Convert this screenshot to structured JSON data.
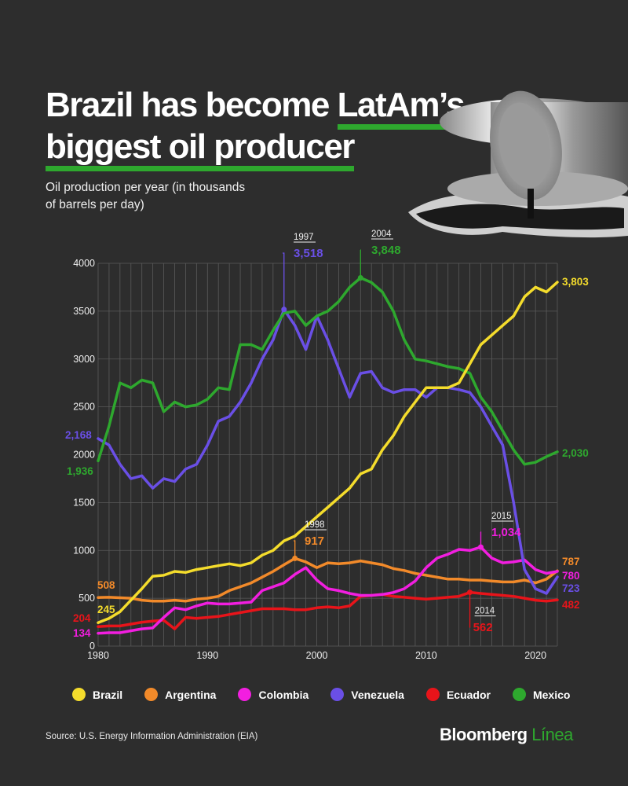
{
  "title_line1_pre": "Brazil has become ",
  "title_line1_hl": "LatAm’s",
  "title_line2": "biggest oil producer",
  "subtitle": "Oil production per year (in thousands of barrels per day)",
  "source": "Source: U.S. Energy Information Administration (EIA)",
  "brand_main": "Bloomberg",
  "brand_accent": "Línea",
  "colors": {
    "Brazil": "#f4dc2c",
    "Argentina": "#f28a2a",
    "Colombia": "#f21ee0",
    "Venezuela": "#6a4fe6",
    "Ecuador": "#e8141a",
    "Mexico": "#2ea82e",
    "background": "#2d2d2d"
  },
  "chart_data": {
    "type": "line",
    "title": "Brazil has become LatAm’s biggest oil producer",
    "subtitle": "Oil production per year (in thousands of barrels per day)",
    "xlim": [
      1980,
      2022
    ],
    "ylim": [
      0,
      4000
    ],
    "x_ticks": [
      1980,
      1990,
      2000,
      2010,
      2020
    ],
    "y_ticks": [
      0,
      500,
      1000,
      1500,
      2000,
      2500,
      3000,
      3500,
      4000
    ],
    "grid": true,
    "legend_position": "bottom",
    "x": [
      1980,
      1981,
      1982,
      1983,
      1984,
      1985,
      1986,
      1987,
      1988,
      1989,
      1990,
      1991,
      1992,
      1993,
      1994,
      1995,
      1996,
      1997,
      1998,
      1999,
      2000,
      2001,
      2002,
      2003,
      2004,
      2005,
      2006,
      2007,
      2008,
      2009,
      2010,
      2011,
      2012,
      2013,
      2014,
      2015,
      2016,
      2017,
      2018,
      2019,
      2020,
      2021,
      2022
    ],
    "series": [
      {
        "name": "Brazil",
        "values": [
          245,
          290,
          360,
          480,
          600,
          730,
          740,
          780,
          770,
          800,
          820,
          840,
          860,
          840,
          870,
          950,
          1000,
          1100,
          1150,
          1250,
          1350,
          1450,
          1550,
          1650,
          1800,
          1850,
          2050,
          2200,
          2400,
          2550,
          2700,
          2700,
          2700,
          2750,
          2950,
          3150,
          3250,
          3350,
          3450,
          3650,
          3750,
          3700,
          3803
        ]
      },
      {
        "name": "Argentina",
        "values": [
          508,
          510,
          505,
          500,
          480,
          470,
          470,
          480,
          470,
          490,
          500,
          520,
          580,
          620,
          660,
          720,
          780,
          850,
          917,
          880,
          820,
          870,
          860,
          870,
          890,
          870,
          850,
          810,
          790,
          760,
          740,
          720,
          700,
          700,
          690,
          690,
          680,
          670,
          670,
          690,
          660,
          700,
          787
        ]
      },
      {
        "name": "Colombia",
        "values": [
          134,
          140,
          140,
          160,
          180,
          190,
          300,
          400,
          380,
          420,
          450,
          440,
          440,
          450,
          460,
          580,
          620,
          660,
          750,
          820,
          690,
          600,
          580,
          550,
          530,
          530,
          540,
          560,
          600,
          680,
          820,
          920,
          960,
          1010,
          1000,
          1034,
          920,
          870,
          880,
          900,
          800,
          760,
          780
        ]
      },
      {
        "name": "Venezuela",
        "values": [
          2168,
          2100,
          1900,
          1750,
          1780,
          1650,
          1750,
          1720,
          1850,
          1900,
          2100,
          2350,
          2400,
          2550,
          2750,
          3000,
          3200,
          3518,
          3350,
          3100,
          3450,
          3200,
          2900,
          2600,
          2850,
          2870,
          2700,
          2650,
          2680,
          2680,
          2600,
          2700,
          2700,
          2680,
          2650,
          2500,
          2300,
          2100,
          1500,
          800,
          600,
          550,
          723
        ]
      },
      {
        "name": "Ecuador",
        "values": [
          204,
          210,
          210,
          230,
          250,
          260,
          270,
          180,
          300,
          290,
          300,
          310,
          330,
          350,
          370,
          390,
          390,
          390,
          380,
          380,
          400,
          410,
          400,
          420,
          520,
          530,
          540,
          520,
          510,
          500,
          490,
          500,
          510,
          520,
          562,
          550,
          540,
          530,
          520,
          500,
          480,
          470,
          482
        ]
      },
      {
        "name": "Mexico",
        "values": [
          1936,
          2300,
          2750,
          2700,
          2780,
          2750,
          2450,
          2550,
          2500,
          2520,
          2580,
          2700,
          2680,
          3150,
          3150,
          3100,
          3300,
          3480,
          3500,
          3350,
          3450,
          3500,
          3600,
          3750,
          3848,
          3800,
          3700,
          3500,
          3200,
          3000,
          2980,
          2950,
          2920,
          2900,
          2850,
          2600,
          2450,
          2250,
          2050,
          1900,
          1920,
          1980,
          2030
        ]
      }
    ],
    "series_labels": {
      "Brazil": {
        "start": "245",
        "end": "3,803"
      },
      "Argentina": {
        "start": "508",
        "end": "787"
      },
      "Colombia": {
        "start": "134",
        "end": "780"
      },
      "Venezuela": {
        "start": "2,168",
        "end": "723"
      },
      "Ecuador": {
        "start": "204",
        "end": "482"
      },
      "Mexico": {
        "start": "1,936",
        "end": "2,030"
      }
    },
    "annotations": [
      {
        "series": "Venezuela",
        "year": "1997",
        "value": "3,518"
      },
      {
        "series": "Mexico",
        "year": "2004",
        "value": "3,848"
      },
      {
        "series": "Argentina",
        "year": "1998",
        "value": "917"
      },
      {
        "series": "Colombia",
        "year": "2015",
        "value": "1,034"
      },
      {
        "series": "Ecuador",
        "year": "2014",
        "value": "562"
      }
    ]
  }
}
